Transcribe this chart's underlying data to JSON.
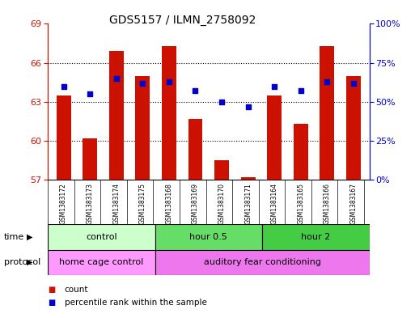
{
  "title": "GDS5157 / ILMN_2758092",
  "samples": [
    "GSM1383172",
    "GSM1383173",
    "GSM1383174",
    "GSM1383175",
    "GSM1383168",
    "GSM1383169",
    "GSM1383170",
    "GSM1383171",
    "GSM1383164",
    "GSM1383165",
    "GSM1383166",
    "GSM1383167"
  ],
  "count_values": [
    63.5,
    60.2,
    66.9,
    65.0,
    67.3,
    61.7,
    58.5,
    57.2,
    63.5,
    61.3,
    67.3,
    65.0
  ],
  "percentile_pct": [
    60,
    55,
    65,
    62,
    63,
    57,
    50,
    47,
    60,
    57,
    63,
    62
  ],
  "ylim_left": [
    57,
    69
  ],
  "ylim_right": [
    0,
    100
  ],
  "yticks_left": [
    57,
    60,
    63,
    66,
    69
  ],
  "yticks_right": [
    0,
    25,
    50,
    75,
    100
  ],
  "bar_color": "#cc1100",
  "dot_color": "#0000cc",
  "bar_bottom": 57,
  "time_groups": [
    {
      "label": "control",
      "start": 0,
      "end": 4,
      "color": "#ccffcc"
    },
    {
      "label": "hour 0.5",
      "start": 4,
      "end": 8,
      "color": "#66dd66"
    },
    {
      "label": "hour 2",
      "start": 8,
      "end": 12,
      "color": "#44cc44"
    }
  ],
  "protocol_groups": [
    {
      "label": "home cage control",
      "start": 0,
      "end": 4,
      "color": "#ff99ff"
    },
    {
      "label": "auditory fear conditioning",
      "start": 4,
      "end": 12,
      "color": "#ee77ee"
    }
  ],
  "grid_color": "#000000",
  "legend_count_color": "#cc1100",
  "legend_dot_color": "#0000cc",
  "time_label": "time",
  "protocol_label": "protocol",
  "bg_color": "#ffffff",
  "plot_bg_color": "#ffffff",
  "tick_bg_color": "#cccccc"
}
